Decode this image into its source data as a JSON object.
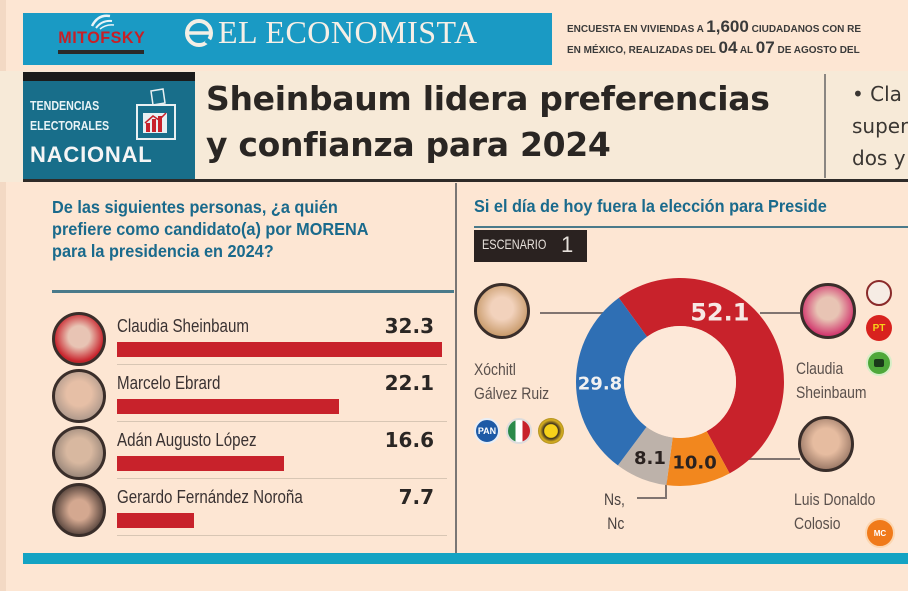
{
  "header": {
    "pollster_logo": "MITOFSKY",
    "newspaper_title": "EL ECONOMISTA",
    "survey_note_line1_a": "ENCUESTA EN VIVIENDAS A ",
    "survey_note_line1_num": "1,600",
    "survey_note_line1_b": " CIUDADANOS CON RE",
    "survey_note_line2_a": "EN MÉXICO, REALIZADAS DEL ",
    "survey_note_line2_num1": "04",
    "survey_note_line2_mid": " AL ",
    "survey_note_line2_num2": "07",
    "survey_note_line2_b": " DE AGOSTO DEL"
  },
  "section_badge": {
    "line1": "TENDENCIAS",
    "line2": "ELECTORALES",
    "line3": "NACIONAL"
  },
  "headline": {
    "line1": "Sheinbaum lidera preferencias",
    "line2": "y confianza para 2024"
  },
  "side_text": {
    "line1": "• Cla",
    "line2": "super",
    "line3": "dos y"
  },
  "chart_data": [
    {
      "type": "bar",
      "orientation": "horizontal",
      "title": "De las siguientes personas, ¿a quién prefiere como candidato(a) por MORENA para la presidencia en 2024?",
      "title_lines": [
        "De las siguientes personas, ¿a quién",
        "prefiere como candidato(a) por MORENA",
        "para la presidencia en 2024?"
      ],
      "categories": [
        "Claudia Sheinbaum",
        "Marcelo Ebrard",
        "Adán Augusto López",
        "Gerardo Fernández Noroña"
      ],
      "values": [
        32.3,
        22.1,
        16.6,
        7.7
      ],
      "value_labels": [
        "32.3",
        "22.1",
        "16.6",
        "7.7"
      ],
      "xlim": [
        0,
        32.3
      ],
      "bar_color": "#c8222b",
      "grid": false
    },
    {
      "type": "pie",
      "style": "donut",
      "title": "Si el día de hoy fuera la elección para Preside",
      "scenario_label": "ESCENARIO",
      "scenario_number": "1",
      "slices": [
        {
          "label": "Claudia Sheinbaum",
          "value": 52.1,
          "value_label": "52.1",
          "color": "#c8222b",
          "label_color": "#f7e8e4"
        },
        {
          "label": "Luis Donaldo Colosio",
          "value": 10.0,
          "value_label": "10.0",
          "color": "#f2871e",
          "label_color": "#2a2220"
        },
        {
          "label": "Ns, Nc",
          "value": 8.1,
          "value_label": "8.1",
          "color": "#bdb2aa",
          "label_color": "#2a2220"
        },
        {
          "label": "Xóchitl Gálvez Ruiz",
          "value": 29.8,
          "value_label": "29.8",
          "color": "#2f6fb4",
          "label_color": "#f1f1f1"
        }
      ],
      "people": {
        "xochitl": {
          "line1": "Xóchitl",
          "line2": "Gálvez Ruiz",
          "parties": [
            "PAN",
            "PRI",
            "PRD"
          ]
        },
        "claudia": {
          "line1": "Claudia",
          "line2": "Sheinbaum",
          "parties": [
            "MORENA",
            "PT",
            "PVEM"
          ]
        },
        "colosio": {
          "line1": "Luis Donaldo",
          "line2": "Colosio",
          "parties": [
            "MC"
          ]
        },
        "nsnc": {
          "line1": "Ns,",
          "line2": "Nc"
        }
      }
    }
  ],
  "colors": {
    "background": "#fde6d3",
    "brand_band": "#1a9ac4",
    "badge": "#186e8a",
    "question_text": "#1a6a8c",
    "bar": "#c8222b"
  }
}
